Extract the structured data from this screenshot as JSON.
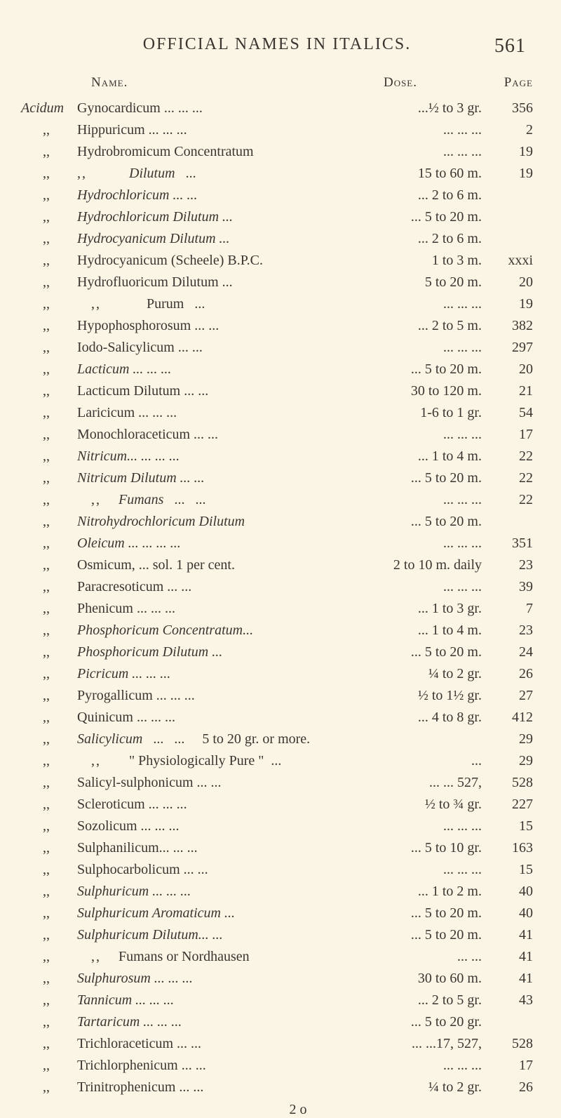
{
  "header": {
    "title": "OFFICIAL NAMES IN ITALICS.",
    "page_number": "561"
  },
  "columns": {
    "name": "Name.",
    "dose": "Dose.",
    "page": "Page"
  },
  "entries": [
    {
      "prefix": "Acidum",
      "prefix_italic": true,
      "name": "Gynocardicum ...   ...   ...",
      "dose": "...½ to   3 gr.",
      "page": "356"
    },
    {
      "prefix": ",,",
      "name": "Hippuricum   ...   ...   ...",
      "dose": "...   ...   ...",
      "page": "2"
    },
    {
      "prefix": ",,",
      "name": "Hydrobromicum Concentratum",
      "dose": "...   ...   ...",
      "page": "19"
    },
    {
      "prefix": ",,",
      "name_html": "<span class='dots'>,,</span>&nbsp;&nbsp;&nbsp;&nbsp;&nbsp;&nbsp;&nbsp;&nbsp;&nbsp;&nbsp;&nbsp;&nbsp;<span class='italic'>Dilutum</span>&nbsp;&nbsp;&nbsp;...",
      "dose": "15 to  60 m.",
      "page": "19"
    },
    {
      "prefix": ",,",
      "name": "Hydrochloricum    ...   ...",
      "name_italic": true,
      "dose": "... 2 to   6 m.",
      "page": ""
    },
    {
      "prefix": ",,",
      "name": "Hydrochloricum Dilutum   ...",
      "name_italic": true,
      "dose": "... 5 to  20 m.",
      "page": ""
    },
    {
      "prefix": ",,",
      "name": "Hydrocyanicum Dilutum   ...",
      "name_italic": true,
      "dose": "... 2 to   6 m.",
      "page": ""
    },
    {
      "prefix": ",,",
      "name": "Hydrocyanicum (Scheele) B.P.C.",
      "dose": "1 to   3 m.",
      "page": "xxxi"
    },
    {
      "prefix": ",,",
      "name": "Hydrofluoricum Dilutum   ...",
      "dose": "5  to  20 m.",
      "page": "20"
    },
    {
      "prefix": ",,",
      "name_html": "&nbsp;&nbsp;&nbsp;&nbsp;<span class='dots'>,,</span>&nbsp;&nbsp;&nbsp;&nbsp;&nbsp;&nbsp;&nbsp;&nbsp;&nbsp;&nbsp;&nbsp;&nbsp;&nbsp;Purum&nbsp;&nbsp;&nbsp;...",
      "dose": "...   ...   ...",
      "page": "19"
    },
    {
      "prefix": ",,",
      "name": "Hypophosphorosum  ...   ...",
      "dose": "... 2 to   5 m.",
      "page": "382"
    },
    {
      "prefix": ",,",
      "name": "Iodo-Salicylicum   ...   ...",
      "dose": "...   ...   ...",
      "page": "297"
    },
    {
      "prefix": ",,",
      "name": "Lacticum    ...   ...   ...",
      "name_italic": true,
      "dose": "... 5 to  20 m.",
      "page": "20"
    },
    {
      "prefix": ",,",
      "name": "Lacticum Dilutum   ...   ...",
      "dose": "30 to 120 m.",
      "page": "21"
    },
    {
      "prefix": ",,",
      "name": "Laricicum    ...   ...   ...",
      "dose": "1-6 to   1 gr.",
      "page": "54"
    },
    {
      "prefix": ",,",
      "name": "Monochloraceticum  ...   ...",
      "dose": "...   ...   ...",
      "page": "17"
    },
    {
      "prefix": ",,",
      "name": "Nitricum...   ...   ...   ...",
      "name_italic": true,
      "dose": "... 1 to   4 m.",
      "page": "22"
    },
    {
      "prefix": ",,",
      "name": "Nitricum Dilutum   ...   ...",
      "name_italic": true,
      "dose": "... 5 to  20 m.",
      "page": "22"
    },
    {
      "prefix": ",,",
      "name_html": "&nbsp;&nbsp;&nbsp;&nbsp;<span class='dots'>,,</span>&nbsp;&nbsp;&nbsp;&nbsp;&nbsp;<span class='italic'>Fumans</span>&nbsp;&nbsp;&nbsp;...&nbsp;&nbsp;&nbsp;...",
      "dose": "...   ...   ...",
      "page": "22"
    },
    {
      "prefix": ",,",
      "name": "Nitrohydrochloricum Dilutum",
      "name_italic": true,
      "dose": "... 5 to  20 m.",
      "page": ""
    },
    {
      "prefix": ",,",
      "name": "Oleicum ...   ...   ...   ...",
      "name_italic": true,
      "dose": "...   ...   ...",
      "page": "351"
    },
    {
      "prefix": ",,",
      "name": "Osmicum, ... sol. 1 per cent.",
      "dose": "2 to  10 m. daily",
      "page": "23"
    },
    {
      "prefix": ",,",
      "name": "Paracresoticum   ...   ...",
      "dose": "...   ...   ...",
      "page": "39"
    },
    {
      "prefix": ",,",
      "name": "Phenicum    ...   ...   ...",
      "dose": "... 1 to   3 gr.",
      "page": "7"
    },
    {
      "prefix": ",,",
      "name": "Phosphoricum Concentratum...",
      "name_italic": true,
      "dose": "... 1 to   4 m.",
      "page": "23"
    },
    {
      "prefix": ",,",
      "name": "Phosphoricum Dilutum   ...",
      "name_italic": true,
      "dose": "... 5 to  20 m.",
      "page": "24"
    },
    {
      "prefix": ",,",
      "name": "Picricum    ...   ...   ...",
      "name_italic": true,
      "dose": "¼ to   2 gr.",
      "page": "26"
    },
    {
      "prefix": ",,",
      "name": "Pyrogallicum   ...   ...   ...",
      "dose": "½ to 1½ gr.",
      "page": "27"
    },
    {
      "prefix": ",,",
      "name": "Quinicum    ...   ...   ...",
      "dose": "... 4 to   8 gr.",
      "page": "412"
    },
    {
      "prefix": ",,",
      "name_html": "<span class='italic'>Salicylicum</span>&nbsp;&nbsp;&nbsp;...&nbsp;&nbsp;&nbsp;...&nbsp;&nbsp;&nbsp;&nbsp;&nbsp;5 to 20 gr. or more.",
      "dose": "",
      "page": "29"
    },
    {
      "prefix": ",,",
      "name_html": "&nbsp;&nbsp;&nbsp;&nbsp;<span class='dots'>,,</span>&nbsp;&nbsp;&nbsp;&nbsp;&nbsp;&nbsp;&nbsp;&nbsp;\" Physiologically Pure \"&nbsp;&nbsp;...",
      "dose": "...",
      "page": "29"
    },
    {
      "prefix": ",,",
      "name": "Salicyl-sulphonicum ...   ...",
      "dose": "...   ...   527,",
      "page": "528"
    },
    {
      "prefix": ",,",
      "name": "Scleroticum   ...   ...   ...",
      "dose": "½ to  ¾ gr.",
      "page": "227"
    },
    {
      "prefix": ",,",
      "name": "Sozolicum    ...   ...   ...",
      "dose": "...   ...   ...",
      "page": "15"
    },
    {
      "prefix": ",,",
      "name": "Sulphanilicum...   ...   ...",
      "dose": "... 5 to 10 gr.",
      "page": "163"
    },
    {
      "prefix": ",,",
      "name": "Sulphocarbolicum   ...   ...",
      "dose": "...   ...   ...",
      "page": "15"
    },
    {
      "prefix": ",,",
      "name": "Sulphuricum   ...   ...   ...",
      "name_italic": true,
      "dose": "... 1 to   2 m.",
      "page": "40"
    },
    {
      "prefix": ",,",
      "name": "Sulphuricum Aromaticum   ...",
      "name_italic": true,
      "dose": "... 5 to  20 m.",
      "page": "40"
    },
    {
      "prefix": ",,",
      "name": "Sulphuricum Dilutum...   ...",
      "name_italic": true,
      "dose": "... 5 to  20 m.",
      "page": "41"
    },
    {
      "prefix": ",,",
      "name_html": "&nbsp;&nbsp;&nbsp;&nbsp;<span class='dots'>,,</span>&nbsp;&nbsp;&nbsp;&nbsp;&nbsp;Fumans or Nordhausen",
      "dose": "...   ...",
      "page": "41"
    },
    {
      "prefix": ",,",
      "name": "Sulphurosum   ...   ...   ...",
      "name_italic": true,
      "dose": "30 to  60 m.",
      "page": "41"
    },
    {
      "prefix": ",,",
      "name": "Tannicum    ...   ...   ...",
      "name_italic": true,
      "dose": "... 2 to   5 gr.",
      "page": "43"
    },
    {
      "prefix": ",,",
      "name": "Tartaricum   ...   ...   ...",
      "name_italic": true,
      "dose": "... 5 to  20 gr.",
      "page": ""
    },
    {
      "prefix": ",,",
      "name": "Trichloraceticum   ...   ...",
      "dose": "...   ...17, 527,",
      "page": "528"
    },
    {
      "prefix": ",,",
      "name": "Trichlorphenicum   ...   ...",
      "dose": "...   ...   ...",
      "page": "17"
    },
    {
      "prefix": ",,",
      "name": "Trinitrophenicum   ...   ...",
      "dose": "¼ to   2 gr.",
      "page": "26"
    }
  ],
  "footer_signature": "2 o"
}
